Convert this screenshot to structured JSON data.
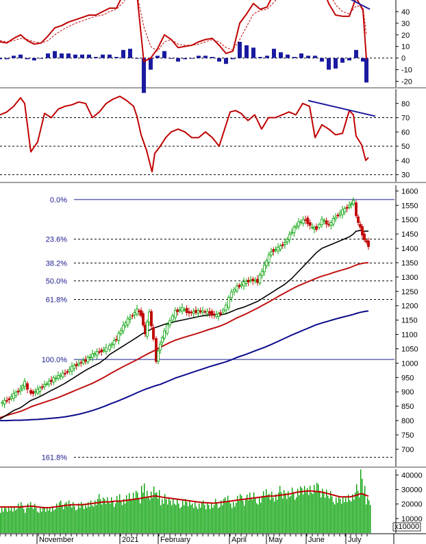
{
  "chart_data": [
    {
      "type": "line",
      "panel": "macd",
      "yticks": [
        -20,
        -10,
        0,
        10,
        20,
        30,
        40
      ],
      "ylim": [
        -25,
        50
      ],
      "series": [],
      "hist_color": "#1a1aa0",
      "line_color": "#c00000",
      "signal_color": "#c00000",
      "divergence_color": "#1a1aa0",
      "x": [
        0,
        10,
        20,
        30,
        40,
        50,
        60,
        70,
        80,
        90,
        100,
        110,
        120,
        130,
        140,
        150,
        160,
        170,
        180,
        190,
        200,
        210,
        220,
        230,
        240,
        250,
        260,
        270,
        280,
        290,
        300,
        310,
        320,
        330,
        340,
        350,
        360,
        370,
        380,
        390,
        400,
        410,
        420,
        430,
        440,
        450,
        460,
        470,
        480,
        490,
        500,
        510,
        520,
        530,
        535
      ],
      "macd": [
        14,
        13,
        17,
        20,
        15,
        12,
        13,
        19,
        26,
        28,
        31,
        33,
        35,
        37,
        37,
        40,
        43,
        43,
        55,
        65,
        55,
        -3,
        0,
        8,
        20,
        16,
        9,
        10,
        11,
        14,
        16,
        17,
        11,
        4,
        6,
        30,
        38,
        47,
        42,
        44,
        56,
        60,
        62,
        62,
        68,
        68,
        70,
        62,
        47,
        37,
        36,
        36,
        52,
        41,
        -1
      ],
      "signal": [
        15,
        14,
        15,
        17,
        16,
        14,
        13,
        15,
        20,
        24,
        27,
        30,
        32,
        34,
        36,
        37,
        40,
        42,
        48,
        57,
        55,
        27,
        10,
        6,
        14,
        16,
        12,
        11,
        11,
        12,
        14,
        16,
        14,
        9,
        7,
        16,
        27,
        38,
        41,
        42,
        48,
        55,
        59,
        61,
        64,
        66,
        68,
        65,
        57,
        46,
        40,
        38,
        45,
        44,
        20
      ],
      "hist": [
        -1,
        -1,
        2,
        3,
        -1,
        -2,
        0,
        4,
        6,
        4,
        4,
        3,
        3,
        3,
        1,
        3,
        3,
        1,
        7,
        8,
        0,
        -30,
        -10,
        2,
        6,
        0,
        -3,
        -1,
        0,
        2,
        2,
        1,
        -3,
        -5,
        -1,
        14,
        11,
        9,
        1,
        2,
        8,
        5,
        3,
        1,
        4,
        2,
        2,
        -3,
        -10,
        -9,
        -4,
        -2,
        7,
        -3,
        -21
      ],
      "divergence": [
        [
          455,
          68
        ],
        [
          540,
          42
        ]
      ]
    },
    {
      "type": "line",
      "panel": "rsi",
      "yticks": [
        30,
        40,
        50,
        60,
        70,
        80
      ],
      "ylim": [
        25,
        90
      ],
      "reference_lines": [
        30,
        50,
        70
      ],
      "line_color": "#c00000",
      "divergence_color": "#1a1aa0",
      "x": [
        0,
        10,
        20,
        30,
        36,
        45,
        55,
        65,
        75,
        85,
        95,
        105,
        115,
        125,
        135,
        145,
        155,
        165,
        175,
        185,
        195,
        200,
        206,
        214,
        222,
        226,
        234,
        242,
        250,
        260,
        270,
        280,
        290,
        300,
        310,
        320,
        328,
        336,
        344,
        352,
        362,
        372,
        382,
        392,
        402,
        412,
        422,
        432,
        442,
        452,
        460,
        470,
        480,
        490,
        500,
        510,
        516,
        520,
        528,
        534,
        538
      ],
      "values": [
        72,
        74,
        78,
        84,
        80,
        46,
        53,
        73,
        70,
        76,
        78,
        79,
        81,
        80,
        70,
        74,
        80,
        83,
        85,
        82,
        78,
        71,
        58,
        47,
        32,
        45,
        50,
        56,
        60,
        62,
        60,
        56,
        56,
        60,
        56,
        50,
        62,
        74,
        75,
        73,
        68,
        72,
        62,
        70,
        70,
        72,
        74,
        72,
        80,
        78,
        56,
        65,
        62,
        58,
        59,
        75,
        72,
        57,
        51,
        40,
        42
      ],
      "divergence": [
        [
          450,
          82
        ],
        [
          548,
          71
        ]
      ]
    },
    {
      "type": "line",
      "panel": "price",
      "yticks": [
        700,
        750,
        800,
        850,
        900,
        950,
        1000,
        1050,
        1100,
        1150,
        1200,
        1250,
        1300,
        1350,
        1400,
        1450,
        1500,
        1550,
        1600
      ],
      "ylim": [
        640,
        1620
      ],
      "fibonacci": [
        {
          "label": "0.0%",
          "value": 1570
        },
        {
          "label": "23.6%",
          "value": 1432
        },
        {
          "label": "38.2%",
          "value": 1349
        },
        {
          "label": "50.0%",
          "value": 1287
        },
        {
          "label": "61.8%",
          "value": 1222
        },
        {
          "label": "100.0%",
          "value": 1013
        },
        {
          "label": "161.8%",
          "value": 672
        }
      ],
      "candle_up": "#00a000",
      "candle_down": "#c00000",
      "x": [
        0,
        10,
        20,
        30,
        36,
        40,
        45,
        55,
        65,
        75,
        85,
        95,
        105,
        115,
        125,
        135,
        145,
        155,
        160,
        170,
        180,
        190,
        200,
        206,
        212,
        218,
        224,
        228,
        234,
        240,
        248,
        256,
        266,
        276,
        286,
        296,
        306,
        316,
        322,
        330,
        338,
        346,
        356,
        366,
        376,
        386,
        396,
        406,
        416,
        426,
        436,
        446,
        456,
        462,
        470,
        480,
        490,
        500,
        510,
        516,
        520,
        526,
        532,
        538
      ],
      "close": [
        860,
        870,
        890,
        910,
        935,
        905,
        895,
        905,
        925,
        940,
        955,
        965,
        985,
        1000,
        1010,
        1030,
        1040,
        1050,
        1060,
        1085,
        1130,
        1160,
        1185,
        1170,
        1100,
        1180,
        1080,
        1010,
        1070,
        1110,
        1150,
        1180,
        1190,
        1175,
        1180,
        1180,
        1175,
        1165,
        1175,
        1200,
        1250,
        1265,
        1280,
        1290,
        1285,
        1340,
        1390,
        1400,
        1420,
        1460,
        1490,
        1500,
        1470,
        1470,
        1500,
        1480,
        1510,
        1530,
        1550,
        1565,
        1510,
        1470,
        1430,
        1410
      ],
      "sma50": [
        805,
        820,
        835,
        845,
        855,
        862,
        870,
        880,
        892,
        905,
        917,
        930,
        945,
        960,
        975,
        988,
        1000,
        1018,
        1030,
        1045,
        1060,
        1075,
        1090,
        1100,
        1108,
        1115,
        1122,
        1125,
        1130,
        1135,
        1140,
        1145,
        1150,
        1155,
        1160,
        1165,
        1168,
        1168,
        1168,
        1172,
        1180,
        1188,
        1195,
        1205,
        1215,
        1230,
        1245,
        1260,
        1275,
        1295,
        1320,
        1345,
        1370,
        1385,
        1400,
        1410,
        1420,
        1430,
        1440,
        1450,
        1460,
        1462,
        1460,
        1460
      ],
      "sma100": [
        810,
        818,
        825,
        832,
        838,
        842,
        848,
        856,
        864,
        872,
        880,
        890,
        900,
        910,
        920,
        930,
        942,
        955,
        962,
        975,
        988,
        1000,
        1012,
        1020,
        1028,
        1035,
        1042,
        1048,
        1055,
        1062,
        1072,
        1080,
        1088,
        1095,
        1102,
        1110,
        1118,
        1125,
        1130,
        1138,
        1148,
        1158,
        1168,
        1180,
        1192,
        1205,
        1218,
        1232,
        1245,
        1258,
        1270,
        1280,
        1290,
        1296,
        1303,
        1310,
        1318,
        1325,
        1332,
        1338,
        1342,
        1346,
        1349,
        1350
      ],
      "sma200": [
        800,
        800,
        801,
        801,
        802,
        802,
        803,
        804,
        806,
        808,
        810,
        813,
        817,
        822,
        828,
        835,
        843,
        852,
        857,
        866,
        876,
        886,
        897,
        903,
        909,
        914,
        919,
        922,
        926,
        932,
        940,
        948,
        956,
        964,
        972,
        980,
        988,
        995,
        999,
        1005,
        1012,
        1020,
        1028,
        1037,
        1046,
        1055,
        1065,
        1076,
        1087,
        1098,
        1108,
        1118,
        1128,
        1134,
        1140,
        1147,
        1154,
        1160,
        1166,
        1170,
        1173,
        1177,
        1180,
        1182
      ],
      "sma50_color": "#000000",
      "sma100_color": "#c01010",
      "sma200_color": "#0a0a8c"
    },
    {
      "type": "bar",
      "panel": "volume",
      "yticks": [
        10000,
        20000,
        30000,
        40000
      ],
      "ylim": [
        0,
        44000
      ],
      "unit_label": "x10000",
      "bar_color": "#00a000",
      "ma_color": "#c00000",
      "x": [
        0,
        8,
        16,
        24,
        32,
        40,
        48,
        56,
        64,
        72,
        80,
        88,
        96,
        104,
        112,
        120,
        128,
        136,
        144,
        152,
        160,
        168,
        176,
        184,
        192,
        200,
        206,
        212,
        218,
        224,
        228,
        234,
        240,
        248,
        256,
        264,
        272,
        280,
        288,
        296,
        304,
        312,
        320,
        328,
        336,
        344,
        352,
        360,
        368,
        376,
        384,
        392,
        400,
        408,
        416,
        424,
        432,
        440,
        448,
        456,
        464,
        472,
        480,
        488,
        496,
        504,
        512,
        520,
        526,
        530,
        534,
        538
      ],
      "volumes": [
        17000,
        16000,
        18000,
        19000,
        17000,
        20000,
        18000,
        17000,
        16000,
        18000,
        19000,
        20000,
        21000,
        19000,
        20000,
        18000,
        22000,
        21000,
        24000,
        23000,
        22000,
        25000,
        21000,
        27000,
        26000,
        25000,
        32000,
        26000,
        28000,
        30000,
        29000,
        22000,
        24000,
        22000,
        21000,
        22000,
        20000,
        21000,
        19000,
        20000,
        19000,
        21000,
        22000,
        23000,
        21000,
        24000,
        23000,
        26000,
        25000,
        24000,
        27000,
        28000,
        25000,
        29000,
        27000,
        28000,
        30000,
        29000,
        32000,
        31000,
        30000,
        28000,
        26000,
        24000,
        22000,
        26000,
        25000,
        30000,
        43000,
        29000,
        24000,
        21000
      ],
      "ma": [
        18000,
        18000,
        18000,
        18000,
        18000,
        18500,
        18500,
        18000,
        17500,
        17500,
        18000,
        18500,
        19000,
        19500,
        19500,
        19500,
        20000,
        20500,
        21000,
        21500,
        21500,
        22000,
        22000,
        22500,
        23000,
        23500,
        24000,
        24500,
        25000,
        25500,
        25500,
        25000,
        24500,
        24000,
        23500,
        23000,
        22500,
        22000,
        21500,
        21000,
        20800,
        20600,
        21000,
        21500,
        22000,
        22500,
        23000,
        23500,
        24000,
        24500,
        25000,
        25500,
        25500,
        26000,
        26500,
        27000,
        28000,
        28500,
        29000,
        29000,
        28500,
        28000,
        27000,
        26000,
        25000,
        25000,
        25000,
        26000,
        27000,
        27000,
        26000,
        25500
      ]
    }
  ],
  "x_axis": {
    "months": [
      {
        "label": "November",
        "x": 57
      },
      {
        "label": "2021",
        "x": 178
      },
      {
        "label": "February",
        "x": 234
      },
      {
        "label": "April",
        "x": 338
      },
      {
        "label": "May",
        "x": 392
      },
      {
        "label": "June",
        "x": 450
      },
      {
        "label": "July",
        "x": 508
      }
    ]
  }
}
